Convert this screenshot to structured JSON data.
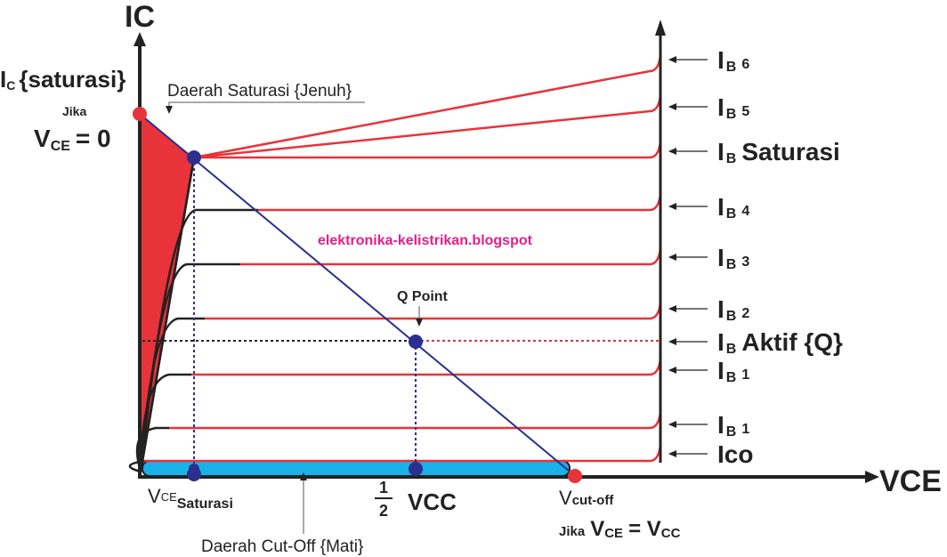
{
  "axes": {
    "y_label": "IC",
    "x_label": "VCE"
  },
  "left_labels": {
    "ic_sat_prefix": "I",
    "ic_sat_sub": "C",
    "ic_sat_word": "{saturasi}",
    "jika_top": "Jika",
    "vce_v": "V",
    "vce_sub": "CE",
    "vce_eq": "= 0"
  },
  "annotations": {
    "saturation_region": "Daerah Saturasi {Jenuh}",
    "cutoff_region": "Daerah Cut-Off {Mati}",
    "q_point": "Q Point",
    "watermark": "elektronika-kelistrikan.blogspot"
  },
  "bottom_labels": {
    "vce_sat_v": "V",
    "vce_sat_sub": "CE",
    "vce_sat_word": "Saturasi",
    "half_num": "1",
    "half_den": "2",
    "half_vcc": "VCC",
    "vcutoff_v": "V",
    "vcutoff_sub": "cut-off",
    "jika": "Jika",
    "vce2_v": "V",
    "vce2_sub": "CE",
    "eq_vcc_prefix": "= V",
    "vcc_sub": "CC"
  },
  "curve_labels": [
    {
      "prefix": "I",
      "sub": "B",
      "text": "6",
      "small": true
    },
    {
      "prefix": "I",
      "sub": "B",
      "text": "5",
      "small": true
    },
    {
      "prefix": "I",
      "sub": "B",
      "text": "Saturasi",
      "small": false
    },
    {
      "prefix": "I",
      "sub": "B",
      "text": "4",
      "small": true
    },
    {
      "prefix": "I",
      "sub": "B",
      "text": "3",
      "small": true
    },
    {
      "prefix": "I",
      "sub": "B",
      "text": "2",
      "small": true
    },
    {
      "prefix": "I",
      "sub": "B",
      "text": "Aktif {Q}",
      "small": false
    },
    {
      "prefix": "I",
      "sub": "B",
      "text": "1",
      "small": true
    },
    {
      "prefix": "I",
      "sub": "B",
      "text": "1",
      "small": true
    },
    {
      "prefix": "",
      "sub": "",
      "text": "Ico",
      "small": false
    }
  ],
  "colors": {
    "red": "#e8333a",
    "blue_line": "#2b2f8f",
    "point_blue": "#2b2f8f",
    "cutoff_fill": "#1ab0e8",
    "magenta": "#e0208a",
    "black": "#222222"
  }
}
